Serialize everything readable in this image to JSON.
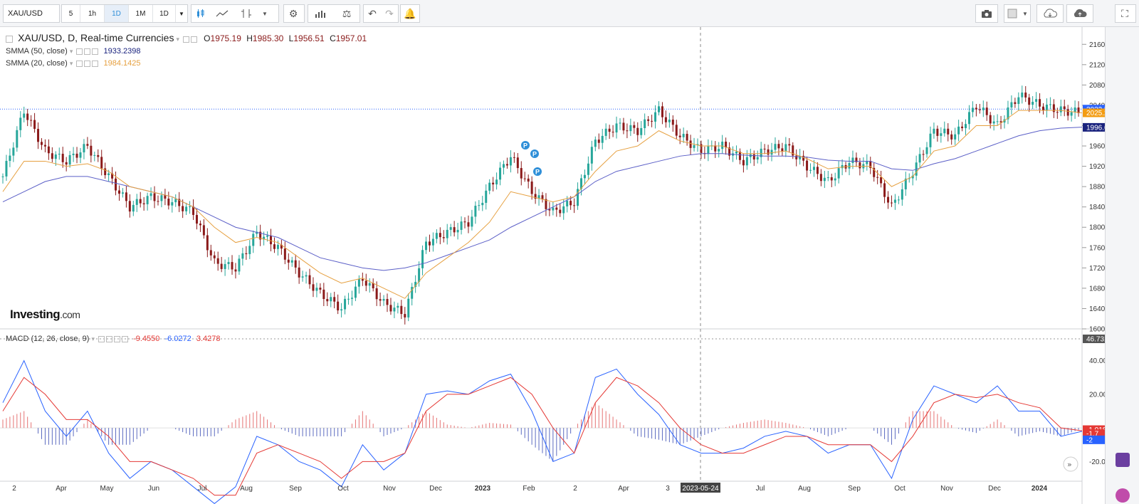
{
  "toolbar": {
    "symbol": "XAU/USD",
    "intervals": [
      {
        "label": "5",
        "active": false
      },
      {
        "label": "1h",
        "active": false
      },
      {
        "label": "1D",
        "active": true
      },
      {
        "label": "1M",
        "active": false
      },
      {
        "label": "1D",
        "active": false
      }
    ],
    "icons_left": [
      "candle-style-icon",
      "indicators-icon",
      "compare-icon",
      "settings-icon",
      "studies-icon",
      "balance-icon",
      "undo-icon",
      "redo-icon",
      "alert-icon"
    ],
    "icons_right": [
      "camera-icon",
      "template-icon",
      "cloud-download-icon",
      "cloud-upload-icon",
      "fullscreen-icon"
    ]
  },
  "legend": {
    "title": "XAU/USD, D, Real-time Currencies",
    "open_label": "O",
    "open": "1975.19",
    "high_label": "H",
    "high": "1985.30",
    "low_label": "L",
    "low": "1956.51",
    "close_label": "C",
    "close": "1957.01",
    "smma50_label": "SMMA (50, close)",
    "smma50_value": "1933.2398",
    "smma20_label": "SMMA (20, close)",
    "smma20_value": "1984.1425",
    "macd_label": "MACD (12, 26, close, 9)",
    "macd_hist": "-9.4550",
    "macd_line": "-6.0272",
    "macd_signal": "3.4278"
  },
  "logo": {
    "brand": "Investing",
    "suffix": ".com"
  },
  "price_axis": {
    "ticks": [
      "2160.00",
      "2120.00",
      "2080.00",
      "2040.00",
      "2000.00",
      "1960.00",
      "1920.00",
      "1880.00",
      "1840.00",
      "1800.00",
      "1760.00",
      "1720.00",
      "1680.00",
      "1640.00",
      "1600.00"
    ],
    "markers": [
      {
        "label": "2032.51",
        "color": "#2962ff"
      },
      {
        "label": "2025.20",
        "color": "#f39c12"
      },
      {
        "label": "1996.62",
        "color": "#1a237e"
      }
    ]
  },
  "macd_axis": {
    "ticks": [
      "40.0000",
      "20.0000",
      "-20.0000"
    ],
    "markers": [
      {
        "label": "46.7315",
        "color": "#555555"
      },
      {
        "label": "-1.0184",
        "color": "#e53935"
      },
      {
        "label": "-1.7",
        "color": "#e53935"
      },
      {
        "label": "-2",
        "color": "#2962ff"
      }
    ]
  },
  "time_axis": {
    "labels": [
      "2",
      "Apr",
      "May",
      "Jun",
      "Jul",
      "Aug",
      "Sep",
      "Oct",
      "Nov",
      "Dec",
      "2023",
      "Feb",
      "2",
      "Apr",
      "3",
      "2023-05-24",
      "Jul",
      "Aug",
      "Sep",
      "Oct",
      "Nov",
      "Dec",
      "2024"
    ]
  },
  "markers": {
    "p": "P"
  },
  "colors": {
    "up": "#26a69a",
    "down": "#8b1a1a",
    "smma50": "#5b5fc7",
    "smma20": "#e6a040",
    "macd": "#2962ff",
    "signal": "#e53935"
  },
  "chart_data": {
    "type": "candlestick",
    "x": [
      "2022-02-22",
      "2022-03-08",
      "2022-03-22",
      "2022-04-05",
      "2022-04-19",
      "2022-05-03",
      "2022-05-17",
      "2022-05-31",
      "2022-06-14",
      "2022-06-28",
      "2022-07-12",
      "2022-07-26",
      "2022-08-09",
      "2022-08-23",
      "2022-09-06",
      "2022-09-20",
      "2022-10-04",
      "2022-10-18",
      "2022-11-01",
      "2022-11-15",
      "2022-11-29",
      "2022-12-13",
      "2022-12-27",
      "2023-01-10",
      "2023-01-24",
      "2023-02-07",
      "2023-02-21",
      "2023-03-07",
      "2023-03-21",
      "2023-04-04",
      "2023-04-18",
      "2023-05-02",
      "2023-05-16",
      "2023-05-30",
      "2023-06-13",
      "2023-06-27",
      "2023-07-11",
      "2023-07-25",
      "2023-08-08",
      "2023-08-22",
      "2023-09-05",
      "2023-09-19",
      "2023-10-03",
      "2023-10-17",
      "2023-10-31",
      "2023-11-14",
      "2023-11-28",
      "2023-12-12",
      "2023-12-26",
      "2024-01-09",
      "2024-01-23",
      "2024-02-06"
    ],
    "close": [
      1900,
      2030,
      1950,
      1930,
      1960,
      1900,
      1840,
      1860,
      1850,
      1830,
      1730,
      1720,
      1790,
      1760,
      1710,
      1670,
      1640,
      1700,
      1650,
      1630,
      1770,
      1790,
      1810,
      1880,
      1940,
      1870,
      1830,
      1850,
      1970,
      2000,
      1990,
      2030,
      1980,
      1950,
      1960,
      1930,
      1950,
      1960,
      1920,
      1890,
      1930,
      1920,
      1840,
      1910,
      1990,
      1980,
      2040,
      2000,
      2060,
      2040,
      2030,
      2025
    ],
    "smma50": [
      1850,
      1870,
      1890,
      1900,
      1900,
      1890,
      1880,
      1870,
      1860,
      1840,
      1820,
      1800,
      1790,
      1780,
      1760,
      1740,
      1730,
      1720,
      1715,
      1720,
      1730,
      1745,
      1760,
      1775,
      1800,
      1820,
      1840,
      1860,
      1890,
      1910,
      1920,
      1930,
      1940,
      1945,
      1945,
      1942,
      1940,
      1940,
      1938,
      1932,
      1930,
      1930,
      1915,
      1912,
      1925,
      1935,
      1950,
      1965,
      1980,
      1990,
      1995,
      1997
    ],
    "smma20": [
      1870,
      1930,
      1930,
      1920,
      1925,
      1910,
      1880,
      1870,
      1860,
      1840,
      1800,
      1770,
      1780,
      1770,
      1740,
      1710,
      1690,
      1700,
      1680,
      1660,
      1710,
      1740,
      1770,
      1810,
      1870,
      1860,
      1850,
      1860,
      1910,
      1950,
      1960,
      1990,
      1970,
      1960,
      1960,
      1945,
      1945,
      1950,
      1935,
      1915,
      1920,
      1920,
      1880,
      1900,
      1950,
      1960,
      2000,
      2000,
      2030,
      2030,
      2030,
      2025
    ],
    "macd": [
      15,
      40,
      10,
      -5,
      10,
      -15,
      -30,
      -20,
      -25,
      -35,
      -45,
      -35,
      -5,
      -10,
      -20,
      -25,
      -35,
      -10,
      -25,
      -15,
      20,
      22,
      20,
      28,
      32,
      10,
      -20,
      -15,
      30,
      35,
      20,
      8,
      -10,
      -15,
      -15,
      -12,
      -5,
      -2,
      -5,
      -15,
      -10,
      -10,
      -30,
      5,
      25,
      20,
      15,
      25,
      10,
      10,
      -5,
      -2
    ],
    "signal": [
      10,
      30,
      20,
      5,
      5,
      -5,
      -20,
      -20,
      -25,
      -30,
      -40,
      -40,
      -15,
      -10,
      -15,
      -20,
      -30,
      -20,
      -20,
      -15,
      10,
      20,
      20,
      25,
      30,
      20,
      0,
      -15,
      15,
      30,
      25,
      15,
      0,
      -10,
      -15,
      -15,
      -10,
      -5,
      -5,
      -10,
      -10,
      -10,
      -20,
      -5,
      15,
      20,
      18,
      20,
      15,
      12,
      0,
      -1.7
    ],
    "ylim": [
      1600,
      2180
    ],
    "macd_ylim": [
      -30,
      50
    ],
    "grid": false,
    "legend": "top-left"
  }
}
